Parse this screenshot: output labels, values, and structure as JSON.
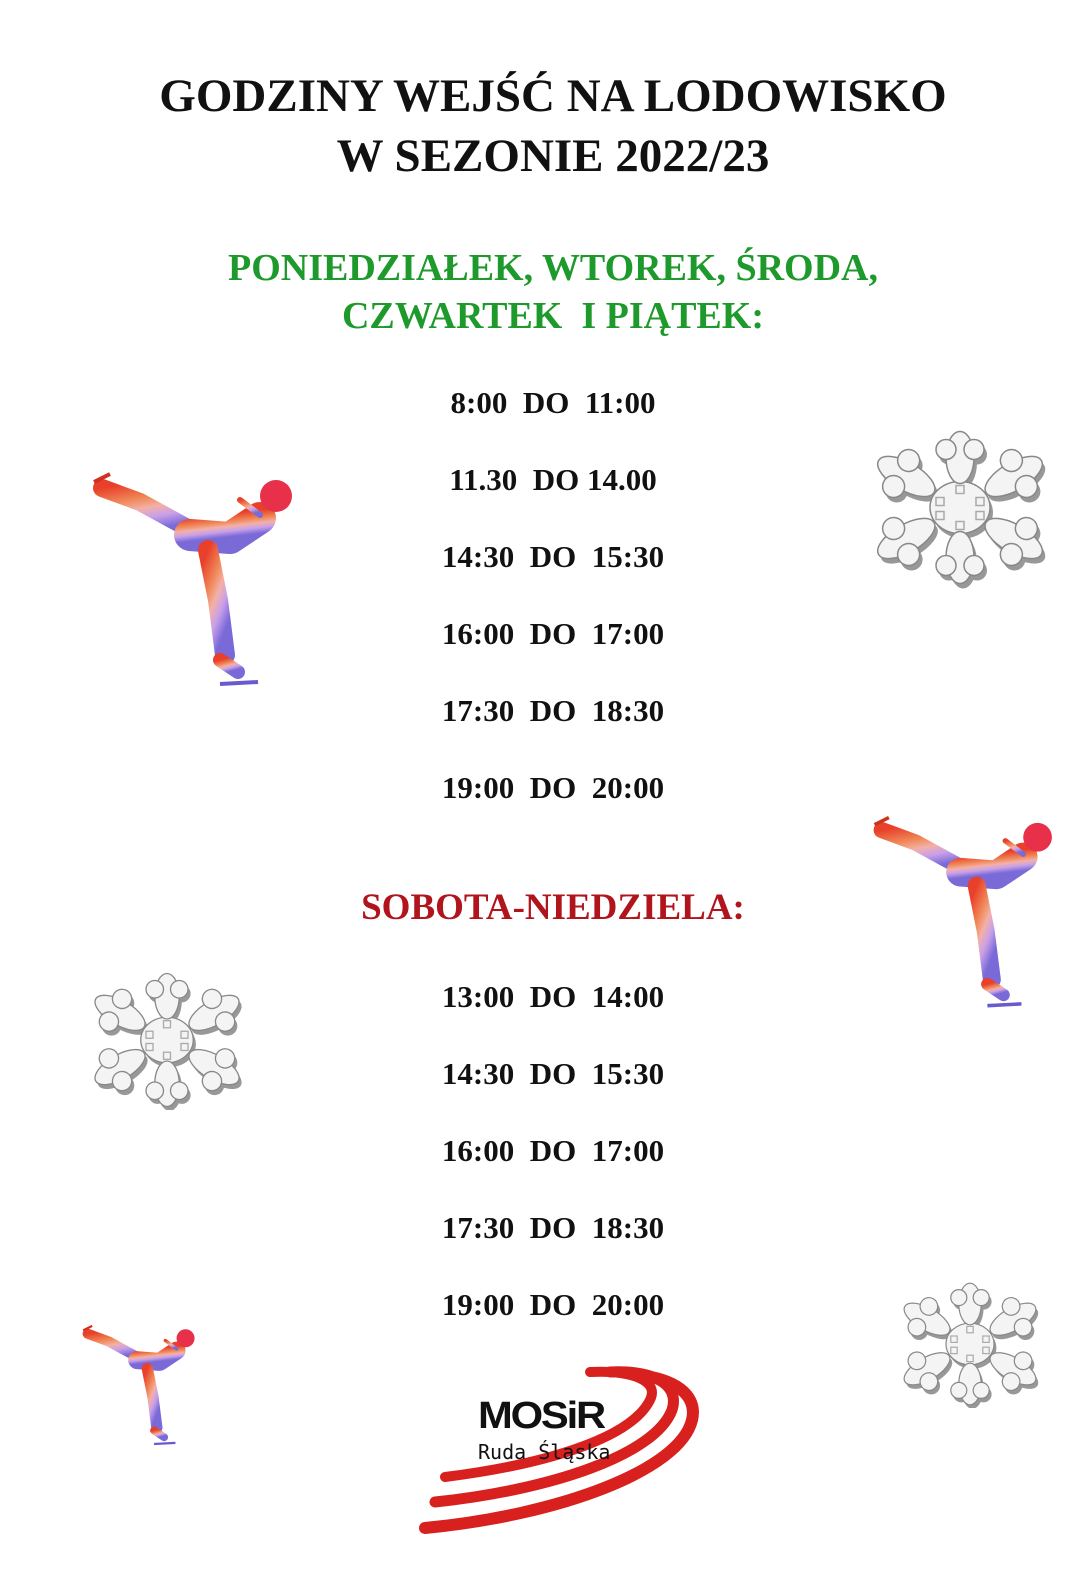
{
  "title": {
    "line1": "GODZINY WEJŚĆ NA LODOWISKO",
    "line2": "W SEZONIE 2022/23"
  },
  "weekdays": {
    "heading_line1": "PONIEDZIAŁEK, WTOREK, ŚRODA,",
    "heading_line2": "CZWARTEK  I PIĄTEK:",
    "color": "#1d9a2b",
    "slots": [
      "8:00  DO  11:00",
      "11.30  DO 14.00",
      "14:30  DO  15:30",
      "16:00  DO  17:00",
      "17:30  DO  18:30",
      "19:00  DO  20:00"
    ]
  },
  "weekend": {
    "heading": "SOBOTA-NIEDZIELA:",
    "color": "#b0141d",
    "slots": [
      "13:00  DO  14:00",
      "14:30  DO  15:30",
      "16:00  DO  17:00",
      "17:30  DO  18:30",
      "19:00  DO  20:00"
    ]
  },
  "logo": {
    "name": "MOSiR",
    "city": "Ruda Śląska"
  },
  "icons": [
    "figure-skater-icon",
    "snowflake-icon"
  ]
}
